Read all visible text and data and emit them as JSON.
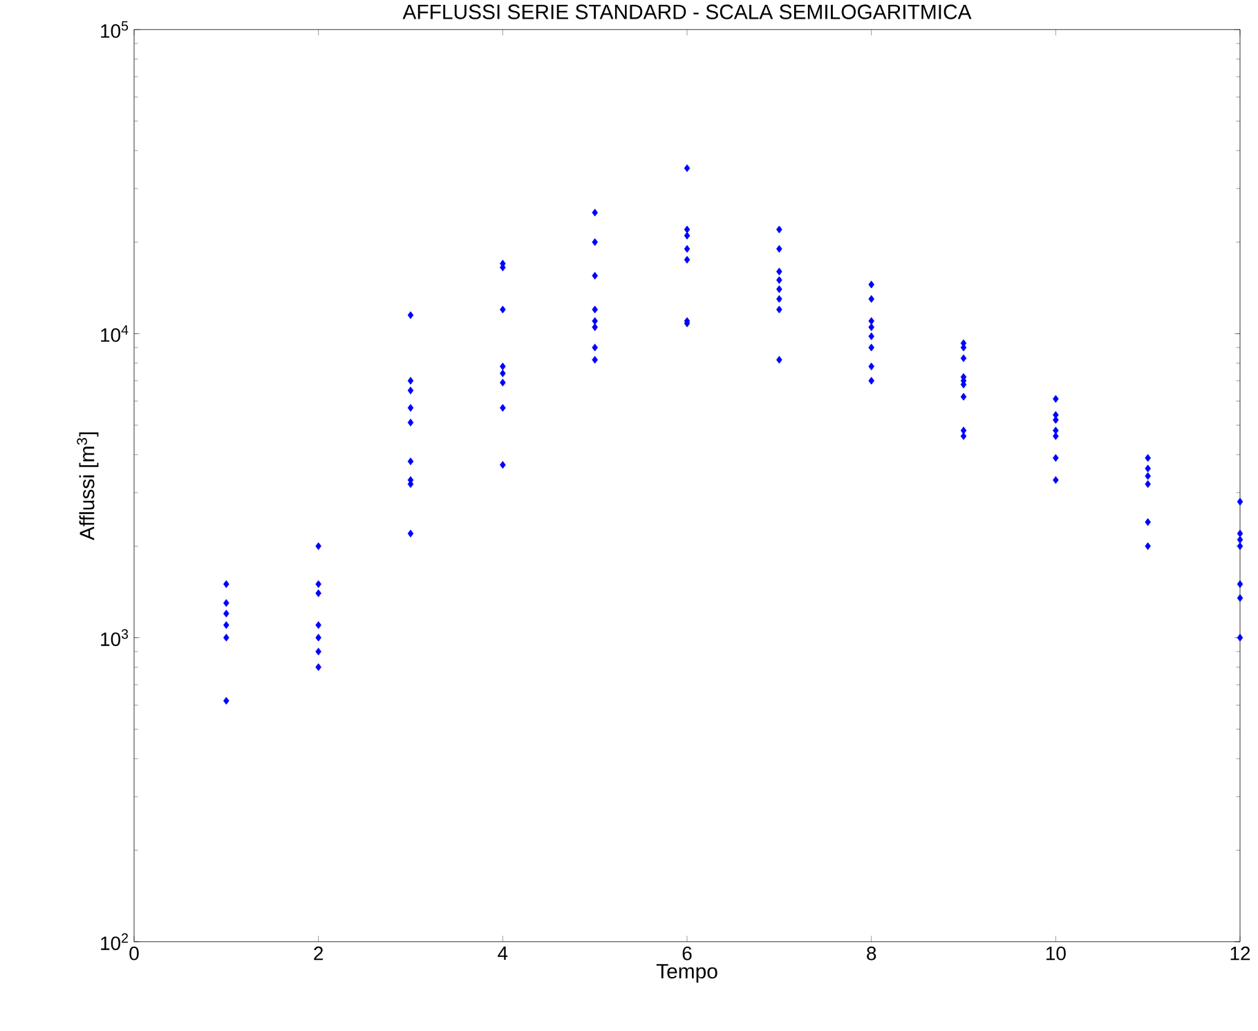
{
  "chart_data": {
    "type": "scatter",
    "title": "AFFLUSSI SERIE STANDARD - SCALA SEMILOGARITMICA",
    "xlabel": "Tempo",
    "ylabel": "Afflussi [m$^{3}$]",
    "series": [
      {
        "color": "#0000ff",
        "x": [
          1,
          1,
          1,
          1,
          1,
          1,
          2,
          2,
          2,
          2,
          2,
          2,
          2,
          3,
          3,
          3,
          3,
          3,
          3,
          3,
          3,
          3,
          4,
          4,
          4,
          4,
          4,
          4,
          4,
          4,
          5,
          5,
          5,
          5,
          5,
          5,
          5,
          5,
          6,
          6,
          6,
          6,
          6,
          6,
          6,
          7,
          7,
          7,
          7,
          7,
          7,
          7,
          7,
          8,
          8,
          8,
          8,
          8,
          8,
          8,
          8,
          9,
          9,
          9,
          9,
          9,
          9,
          9,
          9,
          9,
          10,
          10,
          10,
          10,
          10,
          10,
          10,
          11,
          11,
          11,
          11,
          11,
          11,
          12,
          12,
          12,
          12,
          12,
          12,
          12
        ],
        "values": [
          1500,
          1300,
          1200,
          1100,
          1000,
          620,
          2000,
          1500,
          1400,
          1100,
          1000,
          900,
          800,
          11500,
          7000,
          6500,
          5700,
          5100,
          3800,
          3300,
          3200,
          2200,
          17000,
          16500,
          12000,
          7800,
          7400,
          6900,
          5700,
          3700,
          25000,
          20000,
          15500,
          12000,
          11000,
          10500,
          9000,
          8200,
          35000,
          22000,
          21000,
          19000,
          17500,
          11000,
          10800,
          22000,
          19000,
          16000,
          15000,
          14000,
          13000,
          12000,
          8200,
          14500,
          13000,
          11000,
          10500,
          9800,
          9000,
          7800,
          7000,
          9300,
          9000,
          8300,
          7200,
          7000,
          6800,
          6200,
          4800,
          4600,
          6100,
          5400,
          5200,
          4800,
          4600,
          3900,
          3300,
          3900,
          3600,
          3400,
          3200,
          2400,
          2000,
          2800,
          2200,
          2100,
          2000,
          1500,
          1350,
          1000
        ]
      }
    ],
    "marker": "diamond",
    "log": "y",
    "grid": false,
    "xlim": [
      0,
      12
    ],
    "ylim": [
      100,
      100000
    ],
    "xticks": [
      0,
      2,
      4,
      6,
      8,
      10,
      12
    ],
    "yticks": [
      {
        "value": 100,
        "label": "10$^{2}$"
      },
      {
        "value": 1000,
        "label": "10$^{3}$"
      },
      {
        "value": 10000,
        "label": "10$^{4}$"
      },
      {
        "value": 100000,
        "label": "10$^{5}$"
      }
    ]
  }
}
